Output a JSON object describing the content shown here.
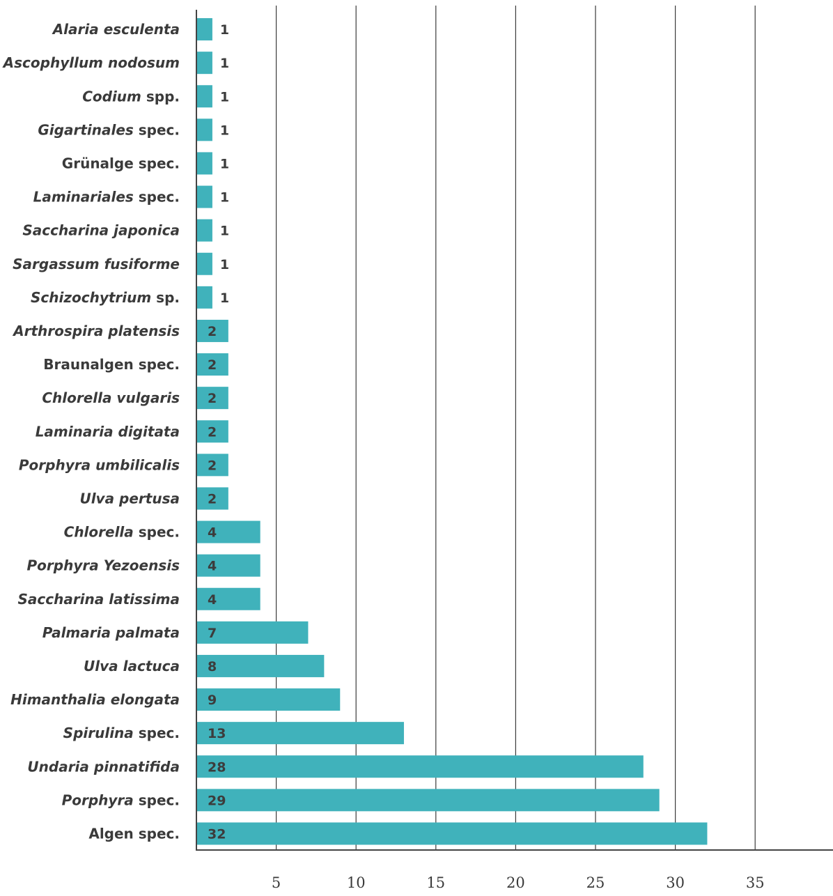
{
  "chart_data": {
    "type": "bar",
    "orientation": "horizontal",
    "bar_color": "#40b2bb",
    "grid_color": "#3a3a3a",
    "text_color": "#3a3a3a",
    "x_ticks": [
      5,
      10,
      15,
      20,
      25,
      30,
      35
    ],
    "xlim": [
      0,
      40
    ],
    "grid": true,
    "categories": [
      {
        "label": [
          {
            "text": "Alaria esculenta",
            "italic": true
          }
        ],
        "value": 1
      },
      {
        "label": [
          {
            "text": "Ascophyllum nodosum",
            "italic": true
          }
        ],
        "value": 1
      },
      {
        "label": [
          {
            "text": "Codium",
            "italic": true
          },
          {
            "text": " spp.",
            "italic": false
          }
        ],
        "value": 1
      },
      {
        "label": [
          {
            "text": "Gigartinales",
            "italic": true
          },
          {
            "text": " spec.",
            "italic": false
          }
        ],
        "value": 1
      },
      {
        "label": [
          {
            "text": "Grünalge spec.",
            "italic": false
          }
        ],
        "value": 1
      },
      {
        "label": [
          {
            "text": "Laminariales",
            "italic": true
          },
          {
            "text": " spec.",
            "italic": false
          }
        ],
        "value": 1
      },
      {
        "label": [
          {
            "text": "Saccharina japonica",
            "italic": true
          }
        ],
        "value": 1
      },
      {
        "label": [
          {
            "text": "Sargassum fusiforme",
            "italic": true
          }
        ],
        "value": 1
      },
      {
        "label": [
          {
            "text": "Schizochytrium",
            "italic": true
          },
          {
            "text": " sp.",
            "italic": false
          }
        ],
        "value": 1
      },
      {
        "label": [
          {
            "text": "Arthrospira platensis",
            "italic": true
          }
        ],
        "value": 2
      },
      {
        "label": [
          {
            "text": "Braunalgen spec.",
            "italic": false
          }
        ],
        "value": 2
      },
      {
        "label": [
          {
            "text": "Chlorella vulgaris",
            "italic": true
          }
        ],
        "value": 2
      },
      {
        "label": [
          {
            "text": "Laminaria digitata",
            "italic": true
          }
        ],
        "value": 2
      },
      {
        "label": [
          {
            "text": "Porphyra umbilicalis",
            "italic": true
          }
        ],
        "value": 2
      },
      {
        "label": [
          {
            "text": "Ulva pertusa",
            "italic": true
          }
        ],
        "value": 2
      },
      {
        "label": [
          {
            "text": "Chlorella",
            "italic": true
          },
          {
            "text": " spec.",
            "italic": false
          }
        ],
        "value": 4
      },
      {
        "label": [
          {
            "text": "Porphyra Yezoensis",
            "italic": true
          }
        ],
        "value": 4
      },
      {
        "label": [
          {
            "text": "Saccharina latissima",
            "italic": true
          }
        ],
        "value": 4
      },
      {
        "label": [
          {
            "text": "Palmaria palmata",
            "italic": true
          }
        ],
        "value": 7
      },
      {
        "label": [
          {
            "text": "Ulva lactuca",
            "italic": true
          }
        ],
        "value": 8
      },
      {
        "label": [
          {
            "text": "Himanthalia elongata",
            "italic": true
          }
        ],
        "value": 9
      },
      {
        "label": [
          {
            "text": "Spirulina",
            "italic": true
          },
          {
            "text": " spec.",
            "italic": false
          }
        ],
        "value": 13
      },
      {
        "label": [
          {
            "text": "Undaria pinnatifida",
            "italic": true
          }
        ],
        "value": 28
      },
      {
        "label": [
          {
            "text": "Porphyra",
            "italic": true
          },
          {
            "text": " spec.",
            "italic": false
          }
        ],
        "value": 29
      },
      {
        "label": [
          {
            "text": "Algen spec.",
            "italic": false
          }
        ],
        "value": 32
      }
    ]
  }
}
